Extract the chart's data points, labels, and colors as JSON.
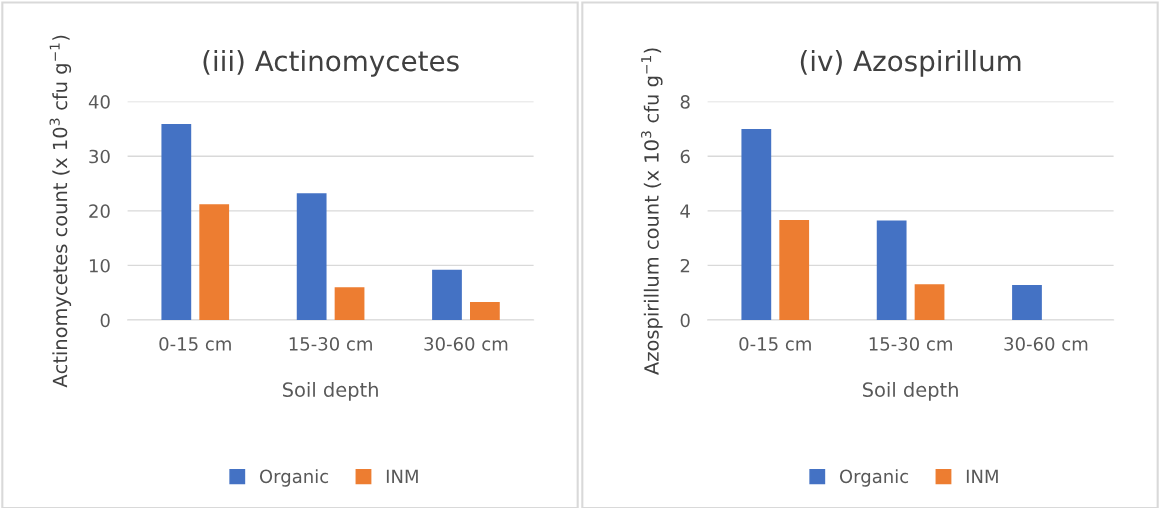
{
  "chart_data": [
    {
      "type": "bar",
      "title": "(iii) Actinomycetes",
      "xlabel": "Soil depth",
      "ylabel": "Actinomycetes count (x 10$^{3}$ cfu g$^{−1}$)",
      "categories": [
        "0-15 cm",
        "15-30 cm",
        "30-60 cm"
      ],
      "series": [
        {
          "name": "Organic",
          "color": "#4472c4",
          "values": [
            35.9,
            23.2,
            9.2
          ]
        },
        {
          "name": "INM",
          "color": "#ed7d31",
          "values": [
            21.2,
            6.0,
            3.3
          ]
        }
      ],
      "ylim": [
        0,
        40
      ],
      "yticks": [
        0,
        10,
        20,
        30,
        40
      ],
      "grid": "y",
      "legend": "bottom"
    },
    {
      "type": "bar",
      "title": "(iv) Azospirillum",
      "xlabel": "Soil depth",
      "ylabel": "Azospirillum count (x 10$^{3}$ cfu g$^{−1}$)",
      "categories": [
        "0-15 cm",
        "15-30 cm",
        "30-60 cm"
      ],
      "series": [
        {
          "name": "Organic",
          "color": "#4472c4",
          "values": [
            7.0,
            3.65,
            1.28
          ]
        },
        {
          "name": "INM",
          "color": "#ed7d31",
          "values": [
            3.66,
            1.31,
            0
          ]
        }
      ],
      "ylim": [
        0,
        8
      ],
      "yticks": [
        0,
        2,
        4,
        6,
        8
      ],
      "grid": "y",
      "legend": "bottom"
    }
  ]
}
